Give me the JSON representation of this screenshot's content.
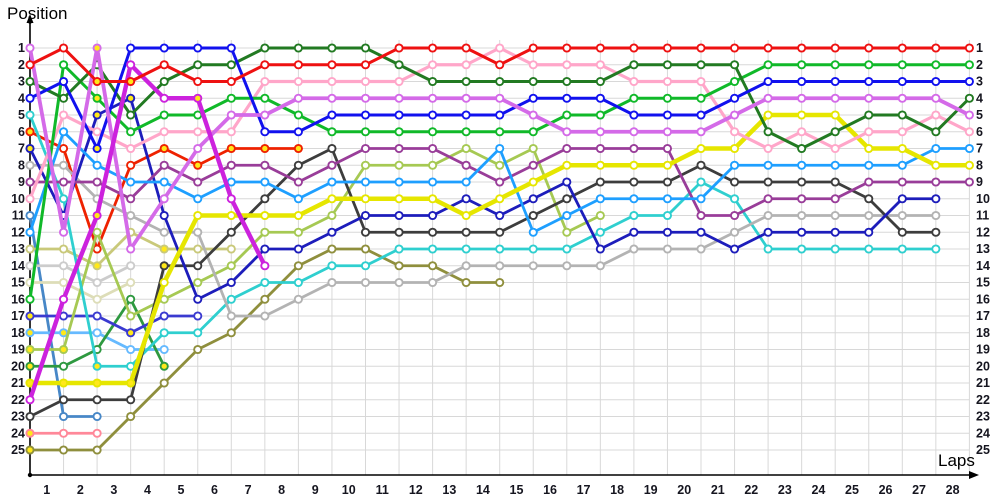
{
  "page": {
    "title": "Race lap chart"
  },
  "axes": {
    "y_label": "Position",
    "x_label": "Laps",
    "y_ticks": [
      1,
      2,
      3,
      4,
      5,
      6,
      7,
      8,
      9,
      10,
      11,
      12,
      13,
      14,
      15,
      16,
      17,
      18,
      19,
      20,
      21,
      22,
      23,
      24,
      25
    ],
    "x_ticks": [
      1,
      2,
      3,
      4,
      5,
      6,
      7,
      8,
      9,
      10,
      11,
      12,
      13,
      14,
      15,
      16,
      17,
      18,
      19,
      20,
      21,
      22,
      23,
      24,
      25,
      26,
      27,
      28
    ]
  },
  "chart_data": {
    "type": "line",
    "title": "",
    "xlabel": "Laps",
    "ylabel": "Position",
    "x_range": [
      0,
      28
    ],
    "ylim": [
      1,
      25
    ],
    "grid": true,
    "grid_color": "#d8d8d8",
    "legend_position": "none",
    "marker_fill_default": "#ffffff",
    "marker_fill_flag": "#ffe81a",
    "note": "positions[i] = running position after lap i (index 0 = starting grid); null = retired / no further laps",
    "series": [
      {
        "id": "car-start-11",
        "name": "steel-blue",
        "color": "#4787c7",
        "width": 2.8,
        "positions": [
          11,
          23,
          23,
          null,
          null,
          null,
          null,
          null,
          null,
          null,
          null,
          null,
          null,
          null,
          null,
          null,
          null,
          null,
          null,
          null,
          null,
          null,
          null,
          null,
          null,
          null,
          null,
          null,
          null
        ],
        "yellow_marker_laps": []
      },
      {
        "id": "car-start-24",
        "name": "salmon",
        "color": "#ff8899",
        "width": 2.8,
        "positions": [
          24,
          24,
          24,
          null,
          null,
          null,
          null,
          null,
          null,
          null,
          null,
          null,
          null,
          null,
          null,
          null,
          null,
          null,
          null,
          null,
          null,
          null,
          null,
          null,
          null,
          null,
          null,
          null,
          null
        ],
        "yellow_marker_laps": [
          0
        ]
      },
      {
        "id": "car-start-15",
        "name": "cream",
        "color": "#ddddb8",
        "width": 2.8,
        "positions": [
          15,
          15,
          16,
          15,
          null,
          null,
          null,
          null,
          null,
          null,
          null,
          null,
          null,
          null,
          null,
          null,
          null,
          null,
          null,
          null,
          null,
          null,
          null,
          null,
          null,
          null,
          null,
          null,
          null
        ],
        "yellow_marker_laps": []
      },
      {
        "id": "car-start-14",
        "name": "silver",
        "color": "#cccccc",
        "width": 2.8,
        "positions": [
          14,
          14,
          15,
          14,
          null,
          null,
          null,
          null,
          null,
          null,
          null,
          null,
          null,
          null,
          null,
          null,
          null,
          null,
          null,
          null,
          null,
          null,
          null,
          null,
          null,
          null,
          null,
          null,
          null
        ],
        "yellow_marker_laps": []
      },
      {
        "id": "car-start-18",
        "name": "sky-blue",
        "color": "#66baff",
        "width": 2.8,
        "positions": [
          18,
          18,
          18,
          19,
          19,
          null,
          null,
          null,
          null,
          null,
          null,
          null,
          null,
          null,
          null,
          null,
          null,
          null,
          null,
          null,
          null,
          null,
          null,
          null,
          null,
          null,
          null,
          null,
          null
        ],
        "yellow_marker_laps": [
          0,
          1
        ]
      },
      {
        "id": "car-start-20",
        "name": "dark-green-2",
        "color": "#2e9940",
        "width": 2.8,
        "positions": [
          20,
          20,
          19,
          16,
          20,
          null,
          null,
          null,
          null,
          null,
          null,
          null,
          null,
          null,
          null,
          null,
          null,
          null,
          null,
          null,
          null,
          null,
          null,
          null,
          null,
          null,
          null,
          null,
          null
        ],
        "yellow_marker_laps": [
          0,
          4
        ]
      },
      {
        "id": "car-start-17",
        "name": "navy-2",
        "color": "#3a3ad0",
        "width": 2.8,
        "positions": [
          17,
          17,
          17,
          18,
          17,
          17,
          null,
          null,
          null,
          null,
          null,
          null,
          null,
          null,
          null,
          null,
          null,
          null,
          null,
          null,
          null,
          null,
          null,
          null,
          null,
          null,
          null,
          null,
          null
        ],
        "yellow_marker_laps": [
          0,
          3
        ]
      },
      {
        "id": "car-start-13",
        "name": "khaki",
        "color": "#c9c97a",
        "width": 2.8,
        "positions": [
          13,
          13,
          14,
          12,
          13,
          13,
          13,
          null,
          null,
          null,
          null,
          null,
          null,
          null,
          null,
          null,
          null,
          null,
          null,
          null,
          null,
          null,
          null,
          null,
          null,
          null,
          null,
          null,
          null
        ],
        "yellow_marker_laps": [
          2,
          4
        ]
      },
      {
        "id": "car-start-06",
        "name": "orange-red",
        "color": "#ee2200",
        "width": 2.8,
        "positions": [
          6,
          7,
          13,
          8,
          7,
          8,
          7,
          7,
          7,
          null,
          null,
          null,
          null,
          null,
          null,
          null,
          null,
          null,
          null,
          null,
          null,
          null,
          null,
          null,
          null,
          null,
          null,
          null,
          null
        ],
        "yellow_marker_laps": [
          0,
          4,
          5,
          6,
          7,
          8
        ]
      },
      {
        "id": "car-start-25",
        "name": "olive",
        "color": "#8f8f3d",
        "width": 2.8,
        "positions": [
          25,
          25,
          25,
          23,
          21,
          19,
          18,
          16,
          14,
          13,
          13,
          14,
          14,
          15,
          15,
          null,
          null,
          null,
          null,
          null,
          null,
          null,
          null,
          null,
          null,
          null,
          null,
          null,
          null
        ],
        "yellow_marker_laps": [
          0
        ]
      },
      {
        "id": "car-start-19",
        "name": "yellow-green",
        "color": "#a6c953",
        "width": 2.8,
        "positions": [
          19,
          19,
          12,
          17,
          16,
          15,
          14,
          12,
          12,
          11,
          8,
          8,
          8,
          7,
          8,
          7,
          12,
          11,
          null,
          null,
          null,
          null,
          null,
          null,
          null,
          null,
          null,
          null,
          null
        ],
        "yellow_marker_laps": [
          0,
          1
        ]
      },
      {
        "id": "car-start-05",
        "name": "cyan",
        "color": "#2fcfcf",
        "width": 2.8,
        "positions": [
          5,
          10,
          20,
          20,
          18,
          18,
          16,
          15,
          15,
          14,
          14,
          13,
          13,
          13,
          13,
          13,
          13,
          12,
          11,
          11,
          9,
          10,
          13,
          13,
          13,
          13,
          13,
          13,
          null
        ],
        "yellow_marker_laps": [
          2
        ]
      },
      {
        "id": "car-start-08",
        "name": "gray",
        "color": "#b3b3b3",
        "width": 2.8,
        "positions": [
          8,
          8,
          10,
          11,
          12,
          12,
          17,
          17,
          16,
          15,
          15,
          15,
          15,
          14,
          14,
          14,
          14,
          14,
          13,
          13,
          13,
          12,
          11,
          11,
          11,
          11,
          11,
          11,
          null
        ],
        "yellow_marker_laps": []
      },
      {
        "id": "car-start-23",
        "name": "black",
        "color": "#3d3d3d",
        "width": 2.8,
        "positions": [
          23,
          22,
          22,
          22,
          14,
          14,
          12,
          10,
          8,
          7,
          12,
          12,
          12,
          12,
          12,
          11,
          10,
          9,
          9,
          9,
          8,
          9,
          9,
          9,
          9,
          10,
          12,
          12,
          null
        ],
        "yellow_marker_laps": [
          4
        ]
      },
      {
        "id": "car-start-07",
        "name": "navy",
        "color": "#1d1dbb",
        "width": 2.8,
        "positions": [
          7,
          11,
          5,
          4,
          11,
          16,
          15,
          13,
          13,
          12,
          11,
          11,
          11,
          10,
          11,
          10,
          9,
          13,
          12,
          12,
          12,
          13,
          12,
          12,
          12,
          12,
          10,
          10,
          null
        ],
        "yellow_marker_laps": [
          0,
          2,
          3
        ]
      },
      {
        "id": "car-start-09",
        "name": "purple",
        "color": "#993d99",
        "width": 2.8,
        "positions": [
          9,
          9,
          9,
          10,
          8,
          9,
          8,
          8,
          9,
          8,
          7,
          7,
          7,
          8,
          9,
          8,
          7,
          7,
          7,
          7,
          11,
          11,
          10,
          10,
          10,
          9,
          9,
          9,
          9
        ],
        "yellow_marker_laps": []
      },
      {
        "id": "car-start-12",
        "name": "dodger-blue",
        "color": "#1e9fff",
        "width": 2.8,
        "positions": [
          12,
          6,
          8,
          9,
          9,
          10,
          9,
          9,
          10,
          9,
          9,
          9,
          9,
          9,
          7,
          12,
          11,
          10,
          10,
          10,
          10,
          8,
          8,
          8,
          8,
          8,
          8,
          7,
          7
        ],
        "yellow_marker_laps": []
      },
      {
        "id": "car-start-21",
        "name": "yellow",
        "color": "#e6e600",
        "width": 4.6,
        "positions": [
          21,
          21,
          21,
          21,
          15,
          11,
          11,
          11,
          11,
          10,
          10,
          10,
          10,
          11,
          10,
          9,
          8,
          8,
          8,
          8,
          7,
          7,
          5,
          5,
          5,
          7,
          7,
          8,
          8
        ],
        "yellow_marker_laps": [
          0,
          1,
          2,
          3
        ]
      },
      {
        "id": "car-start-10",
        "name": "pink",
        "color": "#ffa6c9",
        "width": 3.2,
        "positions": [
          10,
          5,
          6,
          7,
          6,
          6,
          6,
          3,
          3,
          3,
          3,
          3,
          2,
          2,
          1,
          2,
          2,
          2,
          3,
          3,
          3,
          6,
          7,
          6,
          7,
          6,
          6,
          5,
          6
        ],
        "yellow_marker_laps": []
      },
      {
        "id": "car-start-16",
        "name": "green",
        "color": "#10b929",
        "width": 3.0,
        "positions": [
          16,
          2,
          4,
          6,
          5,
          5,
          4,
          4,
          5,
          6,
          6,
          6,
          6,
          6,
          6,
          6,
          5,
          5,
          4,
          4,
          4,
          3,
          2,
          2,
          2,
          2,
          2,
          2,
          2
        ],
        "yellow_marker_laps": [
          2
        ]
      },
      {
        "id": "car-start-03",
        "name": "dark-green",
        "color": "#227a22",
        "width": 3.0,
        "positions": [
          3,
          4,
          2,
          5,
          3,
          2,
          2,
          1,
          1,
          1,
          1,
          2,
          3,
          3,
          3,
          3,
          3,
          3,
          2,
          2,
          2,
          2,
          6,
          7,
          6,
          5,
          5,
          6,
          4
        ],
        "yellow_marker_laps": []
      },
      {
        "id": "car-start-04",
        "name": "blue",
        "color": "#1111ee",
        "width": 3.0,
        "positions": [
          4,
          3,
          7,
          1,
          1,
          1,
          1,
          6,
          6,
          5,
          5,
          5,
          5,
          5,
          5,
          4,
          4,
          4,
          5,
          5,
          5,
          4,
          3,
          3,
          3,
          3,
          3,
          3,
          3
        ],
        "yellow_marker_laps": [
          2
        ]
      },
      {
        "id": "car-start-01",
        "name": "violet",
        "color": "#d46ae8",
        "width": 3.8,
        "positions": [
          1,
          12,
          1,
          13,
          10,
          7,
          5,
          5,
          4,
          4,
          4,
          4,
          4,
          4,
          4,
          5,
          6,
          6,
          6,
          6,
          6,
          5,
          4,
          4,
          4,
          4,
          4,
          4,
          5
        ],
        "yellow_marker_laps": [
          2
        ]
      },
      {
        "id": "car-start-22",
        "name": "magenta",
        "color": "#cc22dd",
        "width": 4.4,
        "positions": [
          22,
          16,
          11,
          2,
          4,
          4,
          10,
          14,
          null,
          null,
          null,
          null,
          null,
          null,
          null,
          null,
          null,
          null,
          null,
          null,
          null,
          null,
          null,
          null,
          null,
          null,
          null,
          null,
          null
        ],
        "yellow_marker_laps": [
          2,
          5
        ]
      },
      {
        "id": "car-start-02",
        "name": "red",
        "color": "#ee1111",
        "width": 3.0,
        "positions": [
          2,
          1,
          3,
          3,
          2,
          3,
          3,
          2,
          2,
          2,
          2,
          1,
          1,
          1,
          2,
          1,
          1,
          1,
          1,
          1,
          1,
          1,
          1,
          1,
          1,
          1,
          1,
          1,
          1
        ],
        "yellow_marker_laps": [
          2,
          3
        ]
      }
    ]
  }
}
